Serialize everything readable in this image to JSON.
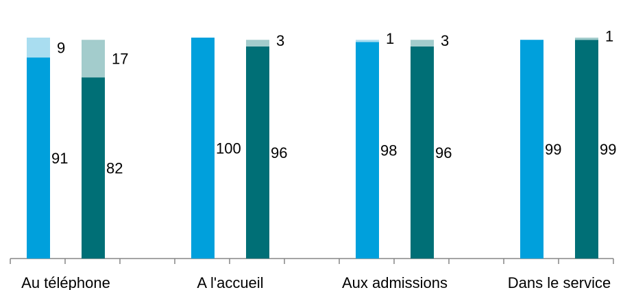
{
  "chart_data": {
    "type": "bar",
    "stacked": true,
    "categories": [
      "Au téléphone",
      "A l'accueil",
      "Aux admissions",
      "Dans le service"
    ],
    "groups": [
      {
        "name": "",
        "colors": [
          "#00A0DC",
          "#A9DDF0"
        ],
        "series": [
          {
            "name": "",
            "values": [
              91,
              100,
              98,
              99
            ]
          },
          {
            "name": "",
            "values": [
              9,
              0,
              1,
              0
            ]
          }
        ]
      },
      {
        "name": "",
        "colors": [
          "#006F76",
          "#A3CCCC"
        ],
        "series": [
          {
            "name": "",
            "values": [
              82,
              96,
              96,
              99
            ]
          },
          {
            "name": "",
            "values": [
              17,
              3,
              3,
              1
            ]
          }
        ]
      }
    ],
    "labels": [
      [
        "91",
        "9",
        "82",
        "17"
      ],
      [
        "100",
        "",
        "96",
        "3"
      ],
      [
        "98",
        "1",
        "96",
        "3"
      ],
      [
        "99",
        "",
        "99",
        "1"
      ]
    ],
    "ylim": [
      0,
      100
    ],
    "grid": false,
    "legend": "none",
    "title": "",
    "xlabel": "",
    "ylabel": ""
  }
}
